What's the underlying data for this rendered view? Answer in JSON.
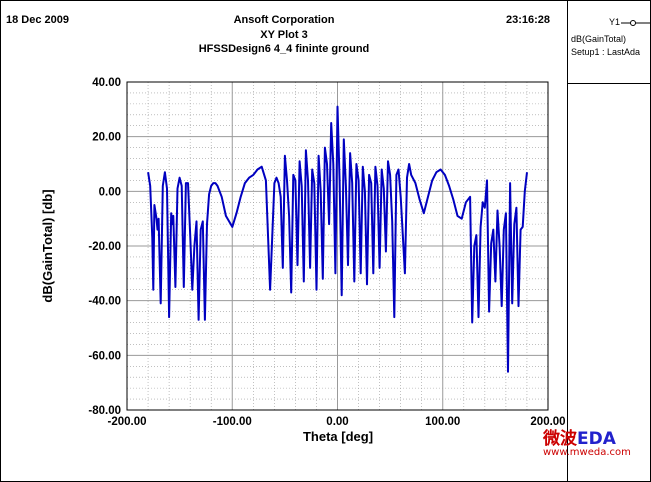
{
  "header": {
    "date": "18 Dec 2009",
    "company": "Ansoft Corporation",
    "plot_name": "XY Plot 3",
    "design": "HFSSDesign6 4_4 fininte ground",
    "time": "23:16:28"
  },
  "legend": {
    "curve_label": "Y1",
    "series_name": "dB(GainTotal)",
    "setup": "Setup1 : LastAda"
  },
  "watermark": {
    "logo": "微波EDA",
    "url": "www.mweda.com"
  },
  "colors": {
    "curve": "#0000c0",
    "grid": "#9a9a9a",
    "watermark_red": "#cc0000",
    "watermark_blue": "#2222cc"
  },
  "chart_data": {
    "type": "line",
    "xlabel": "Theta [deg]",
    "ylabel": "dB(GainTotal) [db]",
    "xlim": [
      -200,
      200
    ],
    "ylim": [
      -80,
      40
    ],
    "xticks": [
      "-200.00",
      "-100.00",
      "0.00",
      "100.00",
      "200.00"
    ],
    "yticks": [
      "40.00",
      "20.00",
      "0.00",
      "-20.00",
      "-40.00",
      "-60.00",
      "-80.00"
    ],
    "grid": true,
    "series": [
      {
        "name": "dB(GainTotal)",
        "x": [
          -180,
          -178,
          -176,
          -175,
          -174,
          -172,
          -171,
          -170,
          -168,
          -166,
          -164,
          -162,
          -160,
          -158,
          -157,
          -156,
          -154,
          -152,
          -150,
          -148,
          -146,
          -144,
          -142,
          -140,
          -138,
          -136,
          -134,
          -132,
          -130,
          -128,
          -126,
          -124,
          -122,
          -120,
          -118,
          -116,
          -114,
          -110,
          -106,
          -100,
          -96,
          -92,
          -88,
          -84,
          -80,
          -76,
          -72,
          -68,
          -64,
          -60,
          -58,
          -56,
          -54,
          -52,
          -50,
          -48,
          -46,
          -44,
          -42,
          -40,
          -38,
          -36,
          -34,
          -32,
          -30,
          -28,
          -26,
          -24,
          -22,
          -20,
          -18,
          -16,
          -14,
          -12,
          -10,
          -8,
          -6,
          -4,
          -2,
          0,
          2,
          4,
          6,
          8,
          10,
          12,
          14,
          16,
          18,
          20,
          22,
          24,
          26,
          28,
          30,
          32,
          34,
          36,
          38,
          40,
          42,
          44,
          46,
          48,
          50,
          52,
          54,
          56,
          58,
          60,
          62,
          64,
          66,
          68,
          70,
          74,
          78,
          82,
          86,
          90,
          94,
          98,
          102,
          106,
          110,
          114,
          118,
          122,
          126,
          128,
          130,
          132,
          134,
          136,
          138,
          140,
          142,
          144,
          146,
          148,
          150,
          152,
          154,
          156,
          158,
          160,
          162,
          164,
          166,
          168,
          170,
          172,
          174,
          176,
          178,
          180
        ],
        "y": [
          7,
          2,
          -17,
          -36,
          -5,
          -10,
          -14,
          -10,
          -41,
          2,
          7,
          1,
          -46,
          -8,
          -12,
          -9,
          -35,
          1,
          5,
          2,
          -35,
          3,
          3,
          -16,
          -36,
          -20,
          -11,
          -47,
          -14,
          -11,
          -47,
          -12,
          -1,
          2,
          3,
          3,
          2,
          -2,
          -9,
          -13,
          -8,
          -2,
          3,
          5,
          6,
          8,
          9,
          4,
          -36,
          3,
          5,
          3,
          -2,
          -28,
          13,
          4,
          -9,
          -37,
          6,
          4,
          -27,
          11,
          2,
          -33,
          15,
          4,
          -28,
          8,
          3,
          -36,
          13,
          0,
          -32,
          16,
          10,
          -12,
          25,
          10,
          -30,
          31,
          4,
          -38,
          19,
          2,
          -27,
          14,
          3,
          -33,
          10,
          4,
          -30,
          9,
          0,
          -34,
          6,
          3,
          -30,
          9,
          2,
          -28,
          8,
          1,
          -22,
          11,
          6,
          -11,
          -46,
          6,
          8,
          -2,
          -16,
          -30,
          5,
          10,
          6,
          3,
          -3,
          -8,
          -2,
          4,
          7,
          8,
          6,
          2,
          -3,
          -9,
          -10,
          -4,
          -2,
          -48,
          -20,
          -16,
          -46,
          -13,
          -4,
          -6,
          4,
          -44,
          -19,
          -14,
          -33,
          -7,
          -20,
          -42,
          -14,
          -8,
          -66,
          3,
          -41,
          -12,
          -6,
          -42,
          -14,
          -13,
          0,
          7
        ]
      }
    ]
  }
}
